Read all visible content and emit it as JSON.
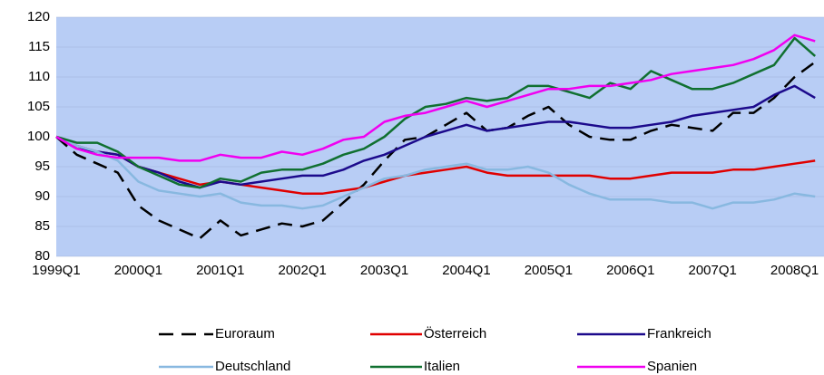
{
  "chart_data": {
    "type": "line",
    "categories": [
      "1999Q1",
      null,
      null,
      null,
      "2000Q1",
      null,
      null,
      null,
      "2001Q1",
      null,
      null,
      null,
      "2002Q1",
      null,
      null,
      null,
      "2003Q1",
      null,
      null,
      null,
      "2004Q1",
      null,
      null,
      null,
      "2005Q1",
      null,
      null,
      null,
      "2006Q1",
      null,
      null,
      null,
      "2007Q1",
      null,
      null,
      null,
      "2008Q1",
      null
    ],
    "ylim": [
      80,
      120
    ],
    "yticks": [
      80,
      85,
      90,
      95,
      100,
      105,
      110,
      115,
      120
    ],
    "grid": true,
    "series": [
      {
        "name": "Euroraum",
        "color": "#000000",
        "dashed": true,
        "values": [
          100,
          97,
          95.5,
          94,
          88.5,
          86,
          84.5,
          83,
          86,
          83.5,
          84.5,
          85.5,
          85,
          86,
          89,
          92,
          96,
          99.5,
          100,
          102,
          104,
          101,
          101.5,
          103.5,
          105,
          102,
          100,
          99.5,
          99.5,
          101,
          102,
          101.5,
          101,
          104,
          104,
          106.5,
          110,
          112.5
        ]
      },
      {
        "name": "Österreich",
        "color": "#e00000",
        "values": [
          100,
          98.5,
          97.5,
          97,
          95,
          94,
          93,
          92,
          92.5,
          92,
          91.5,
          91,
          90.5,
          90.5,
          91,
          91.5,
          92.5,
          93.5,
          94,
          94.5,
          95,
          94,
          93.5,
          93.5,
          93.5,
          93.5,
          93.5,
          93,
          93,
          93.5,
          94,
          94,
          94,
          94.5,
          94.5,
          95,
          95.5,
          96
        ]
      },
      {
        "name": "Frankreich",
        "color": "#1c0a8c",
        "values": [
          100,
          98,
          97.5,
          97,
          95,
          94,
          92.5,
          91.5,
          92.5,
          92,
          92.5,
          93,
          93.5,
          93.5,
          94.5,
          96,
          97,
          98.5,
          100,
          101,
          102,
          101,
          101.5,
          102,
          102.5,
          102.5,
          102,
          101.5,
          101.5,
          102,
          102.5,
          103.5,
          104,
          104.5,
          105,
          107,
          108.5,
          106.5
        ]
      },
      {
        "name": "Deutschland",
        "color": "#88b8e0",
        "values": [
          100,
          98.5,
          97.5,
          96,
          92.5,
          91,
          90.5,
          90,
          90.5,
          89,
          88.5,
          88.5,
          88,
          88.5,
          90,
          91.5,
          93,
          93.5,
          94.5,
          95,
          95.5,
          94.5,
          94.5,
          95,
          94,
          92,
          90.5,
          89.5,
          89.5,
          89.5,
          89,
          89,
          88,
          89,
          89,
          89.5,
          90.5,
          90
        ]
      },
      {
        "name": "Italien",
        "color": "#107030",
        "values": [
          100,
          99,
          99,
          97.5,
          95,
          93.5,
          92,
          91.5,
          93,
          92.5,
          94,
          94.5,
          94.5,
          95.5,
          97,
          98,
          100,
          103,
          105,
          105.5,
          106.5,
          106,
          106.5,
          108.5,
          108.5,
          107.5,
          106.5,
          109,
          108,
          111,
          109.5,
          108,
          108,
          109,
          110.5,
          112,
          116.5,
          113.5
        ]
      },
      {
        "name": "Spanien",
        "color": "#f000f0",
        "values": [
          100,
          98,
          97,
          96.5,
          96.5,
          96.5,
          96,
          96,
          97,
          96.5,
          96.5,
          97.5,
          97,
          98,
          99.5,
          100,
          102.5,
          103.5,
          104,
          105,
          106,
          105,
          106,
          107,
          108,
          108,
          108.5,
          108.5,
          109,
          109.5,
          110.5,
          111,
          111.5,
          112,
          113,
          114.5,
          117,
          116
        ]
      }
    ]
  }
}
